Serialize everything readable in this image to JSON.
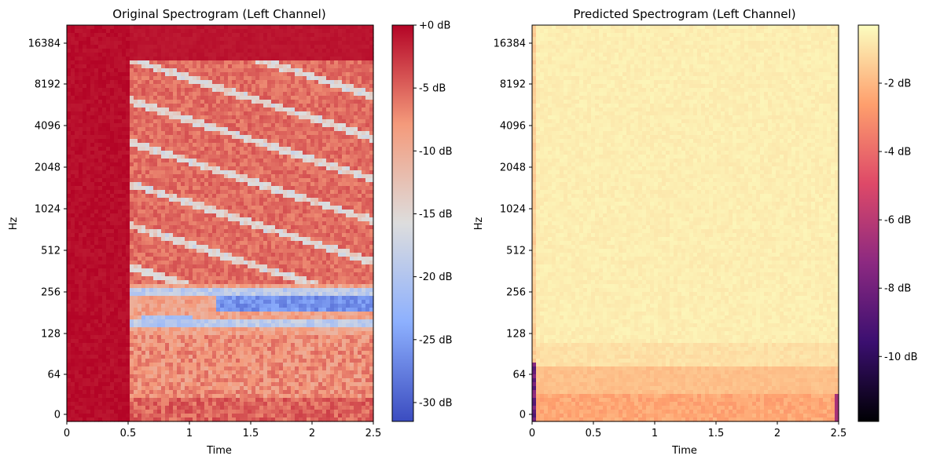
{
  "chart_data": [
    {
      "type": "heatmap",
      "title": "Original Spectrogram (Left Channel)",
      "xlabel": "Time",
      "ylabel": "Hz",
      "xlim": [
        0,
        2.5
      ],
      "x_ticks": [
        "0",
        "0.5",
        "1",
        "1.5",
        "2",
        "2.5"
      ],
      "y_scale": "log-like (mel)",
      "y_ticks": [
        "0",
        "64",
        "128",
        "256",
        "512",
        "1024",
        "2048",
        "4096",
        "8192",
        "16384"
      ],
      "colormap": "coolwarm",
      "colorbar_ticks": [
        "+0 dB",
        "-5 dB",
        "-10 dB",
        "-15 dB",
        "-20 dB",
        "-25 dB",
        "-30 dB"
      ],
      "colorbar_range_db": [
        -31.5,
        0
      ]
    },
    {
      "type": "heatmap",
      "title": "Predicted Spectrogram (Left Channel)",
      "xlabel": "Time",
      "ylabel": "Hz",
      "xlim": [
        0,
        2.5
      ],
      "x_ticks": [
        "0",
        "0.5",
        "1",
        "1.5",
        "2",
        "2.5"
      ],
      "y_scale": "log-like (mel)",
      "y_ticks": [
        "0",
        "64",
        "128",
        "256",
        "512",
        "1024",
        "2048",
        "4096",
        "8192",
        "16384"
      ],
      "colormap": "magma",
      "colorbar_ticks": [
        "-2 dB",
        "-4 dB",
        "-6 dB",
        "-8 dB",
        "-10 dB"
      ],
      "colorbar_range_db": [
        -11.9,
        -0.3
      ]
    }
  ]
}
